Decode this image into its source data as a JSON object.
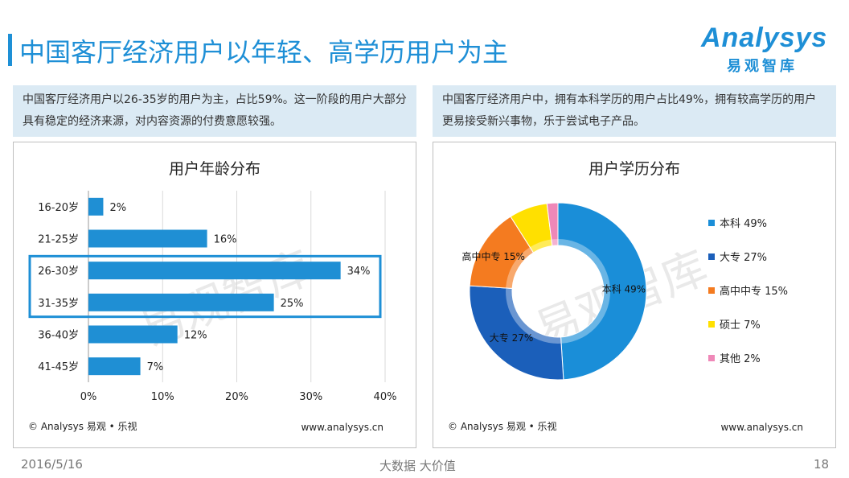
{
  "page": {
    "title": "中国客厅经济用户以年轻、高学历用户为主",
    "logo_word": "Analysys",
    "logo_cn": "易观智库",
    "desc_left": "中国客厅经济用户以26-35岁的用户为主，占比59%。这一阶段的用户大部分具有稳定的经济来源，对内容资源的付费意愿较强。",
    "desc_right": "中国客厅经济用户中，拥有本科学历的用户占比49%，拥有较高学历的用户更易接受新兴事物，乐于尝试电子产品。",
    "footer_date": "2016/5/16",
    "footer_mid": "大数据  大价值",
    "footer_page": "18",
    "watermark": "易观智库"
  },
  "colors": {
    "accent": "#1e8fd6",
    "bar": "#1f8fd4",
    "highlight_box": "#1e8fd6"
  },
  "chart_data": [
    {
      "type": "bar",
      "orientation": "horizontal",
      "title": "用户年龄分布",
      "categories": [
        "16-20岁",
        "21-25岁",
        "26-30岁",
        "31-35岁",
        "36-40岁",
        "41-45岁"
      ],
      "values": [
        2,
        16,
        34,
        25,
        12,
        7
      ],
      "value_labels": [
        "2%",
        "16%",
        "34%",
        "25%",
        "12%",
        "7%"
      ],
      "xlim": [
        0,
        40
      ],
      "xticks": [
        0,
        10,
        20,
        30,
        40
      ],
      "xtick_labels": [
        "0%",
        "10%",
        "20%",
        "30%",
        "40%"
      ],
      "grid": true,
      "highlighted_categories": [
        "26-30岁",
        "31-35岁"
      ],
      "source": "© Analysys 易观 • 乐视",
      "url": "www.analysys.cn"
    },
    {
      "type": "pie",
      "variant": "donut",
      "title": "用户学历分布",
      "slices": [
        {
          "name": "本科",
          "value": 49,
          "label": "49%",
          "color": "#1a8ed8"
        },
        {
          "name": "大专",
          "value": 27,
          "label": "27%",
          "color": "#1b5fba"
        },
        {
          "name": "高中中专",
          "value": 15,
          "label": "15%",
          "color": "#f47b20"
        },
        {
          "name": "硕士",
          "value": 7,
          "label": "7%",
          "color": "#ffe000"
        },
        {
          "name": "其他",
          "value": 2,
          "label": "2%",
          "color": "#ef88b8"
        }
      ],
      "legend_position": "right",
      "source": "© Analysys 易观 • 乐视",
      "url": "www.analysys.cn"
    }
  ]
}
